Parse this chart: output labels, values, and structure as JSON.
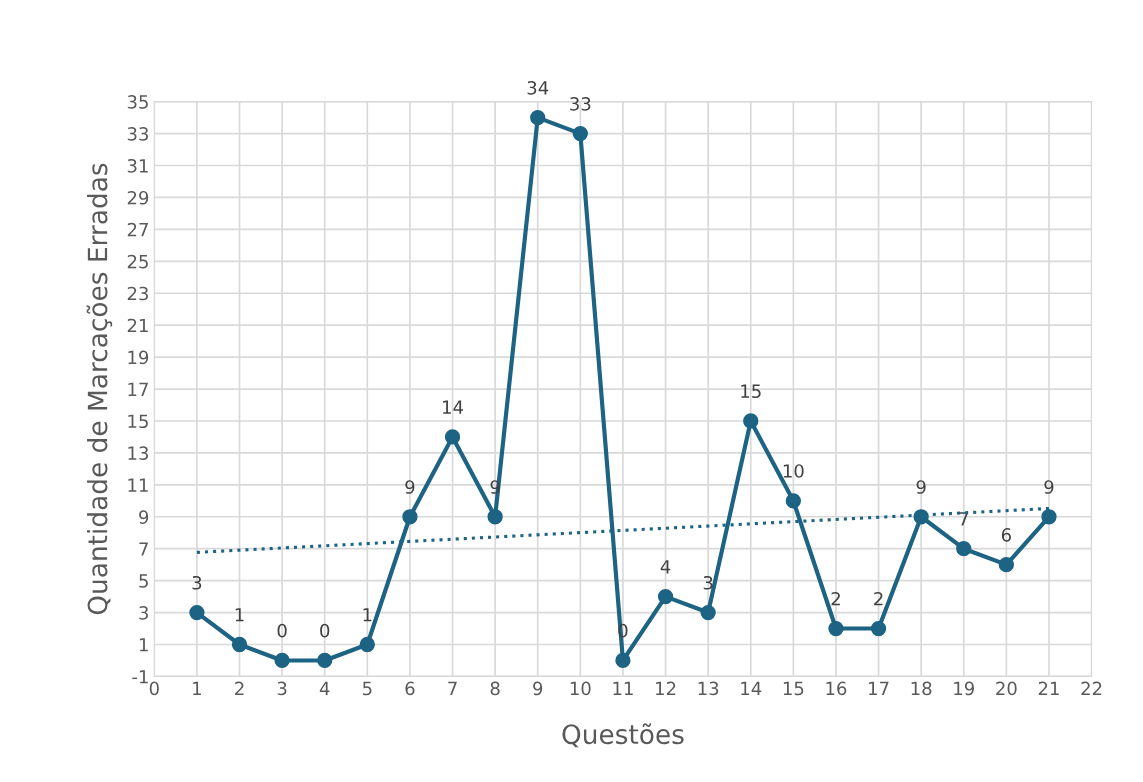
{
  "chart_data": {
    "type": "line",
    "xlabel": "Questões",
    "ylabel": "Quantidade de Marcações Erradas",
    "x": [
      1,
      2,
      3,
      4,
      5,
      6,
      7,
      8,
      9,
      10,
      11,
      12,
      13,
      14,
      15,
      16,
      17,
      18,
      19,
      20,
      21
    ],
    "series": [
      {
        "color": "#1d6384",
        "values": [
          3,
          1,
          0,
          0,
          1,
          9,
          14,
          9,
          34,
          33,
          0,
          4,
          3,
          15,
          10,
          2,
          2,
          9,
          7,
          6,
          9
        ],
        "marker": "circle",
        "line_style": "solid",
        "data_labels": true
      },
      {
        "color": "#1d6384",
        "type": "line",
        "x": [
          1,
          21
        ],
        "values": [
          6.77,
          9.52
        ],
        "marker": "none",
        "line_style": "dotted"
      }
    ],
    "xlim": [
      0,
      22
    ],
    "xticks": [
      0,
      1,
      2,
      3,
      4,
      5,
      6,
      7,
      8,
      9,
      10,
      11,
      12,
      13,
      14,
      15,
      16,
      17,
      18,
      19,
      20,
      21,
      22
    ],
    "ylim": [
      -1,
      35
    ],
    "yticks": [
      -1,
      1,
      3,
      5,
      7,
      9,
      11,
      13,
      15,
      17,
      19,
      21,
      23,
      25,
      27,
      29,
      31,
      33,
      35
    ],
    "grid": true,
    "legend": false
  }
}
